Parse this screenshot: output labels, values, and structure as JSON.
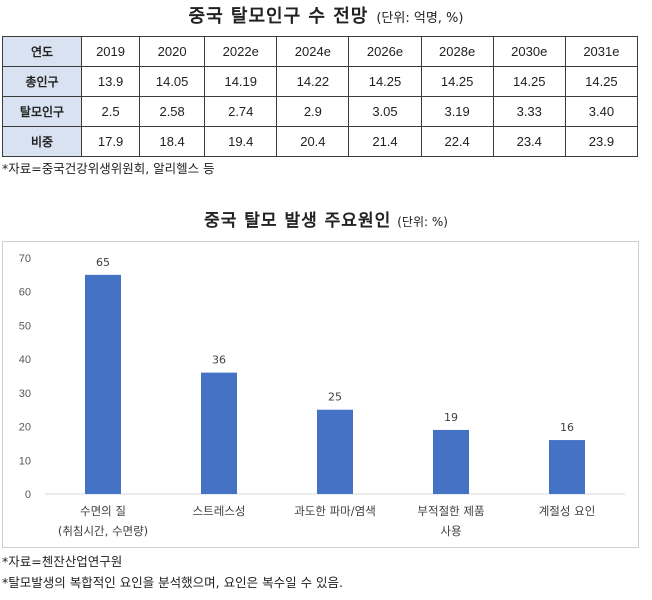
{
  "top_title": "중국 탈모인구 수 전망",
  "top_unit": "(단위: 억명, %)",
  "table": {
    "header_label": "연도",
    "years": [
      "2019",
      "2020",
      "2022e",
      "2024e",
      "2026e",
      "2028e",
      "2030e",
      "2031e"
    ],
    "rows": [
      {
        "label": "총인구",
        "values": [
          "13.9",
          "14.05",
          "14.19",
          "14.22",
          "14.25",
          "14.25",
          "14.25",
          "14.25"
        ]
      },
      {
        "label": "탈모인구",
        "values": [
          "2.5",
          "2.58",
          "2.74",
          "2.9",
          "3.05",
          "3.19",
          "3.33",
          "3.40"
        ]
      },
      {
        "label": "비중",
        "values": [
          "17.9",
          "18.4",
          "19.4",
          "20.4",
          "21.4",
          "22.4",
          "23.4",
          "23.9"
        ]
      }
    ]
  },
  "table_source": "*자료=중국건강위생위원회, 알리헬스 등",
  "chart_data": {
    "type": "bar",
    "title": "중국 탈모 발생 주요원인",
    "unit": "(단위: %)",
    "categories": [
      [
        "수면의 질",
        "(취침시간, 수면량)"
      ],
      [
        "스트레스성"
      ],
      [
        "과도한 파마/염색"
      ],
      [
        "부적절한 제품",
        "사용"
      ],
      [
        "계절성 요인"
      ]
    ],
    "values": [
      65,
      36,
      25,
      19,
      16
    ],
    "ylim": [
      0,
      70
    ],
    "yticks": [
      0,
      10,
      20,
      30,
      40,
      50,
      60,
      70
    ],
    "bar_color": "#4472c4",
    "grid": false
  },
  "chart_source": "*자료=첸잔산업연구원",
  "chart_note": "*탈모발생의 복합적인 요인을 분석했으며, 요인은 복수일 수 있음."
}
